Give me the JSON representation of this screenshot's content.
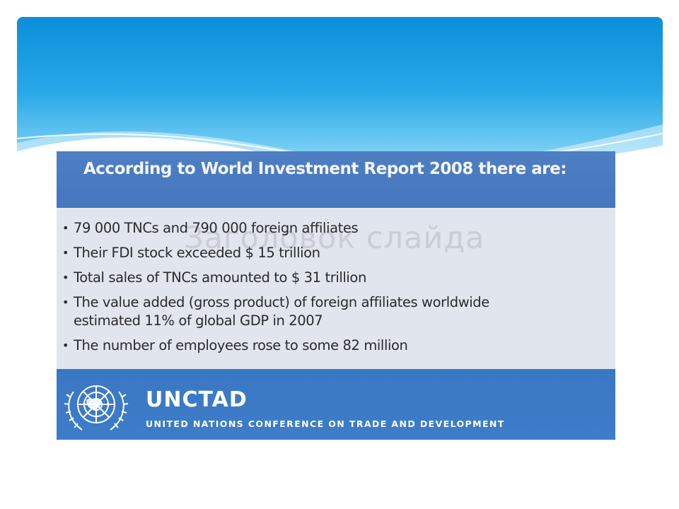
{
  "report": {
    "title": "According to World Investment Report 2008  there are:",
    "ghost_text": "Заголовок слайда",
    "bullets": [
      {
        "line1": "79 000 TNCs and 790 000 foreign affiliates",
        "line2": ""
      },
      {
        "line1": "Their FDI stock exceeded  $ 15 trillion",
        "line2": ""
      },
      {
        "line1": "Total sales of TNCs amounted to $ 31 trillion",
        "line2": ""
      },
      {
        "line1": "The value added (gross product) of foreign affiliates worldwide",
        "line2": "estimated 11% of global GDP in 2007"
      },
      {
        "line1": "The number of employees rose to some 82 million",
        "line2": ""
      }
    ],
    "bullet_glyph": "•"
  },
  "logo": {
    "short_name": "UNCTAD",
    "full_name": "UNITED NATIONS CONFERENCE ON TRADE AND DEVELOPMENT",
    "emblem_icon": "un-emblem-icon"
  },
  "colors": {
    "header_blue": "#0a8fd8",
    "title_band": "#4e7fc3",
    "bullet_bg": "#e1e5ee",
    "logo_band": "#3a78c4"
  }
}
